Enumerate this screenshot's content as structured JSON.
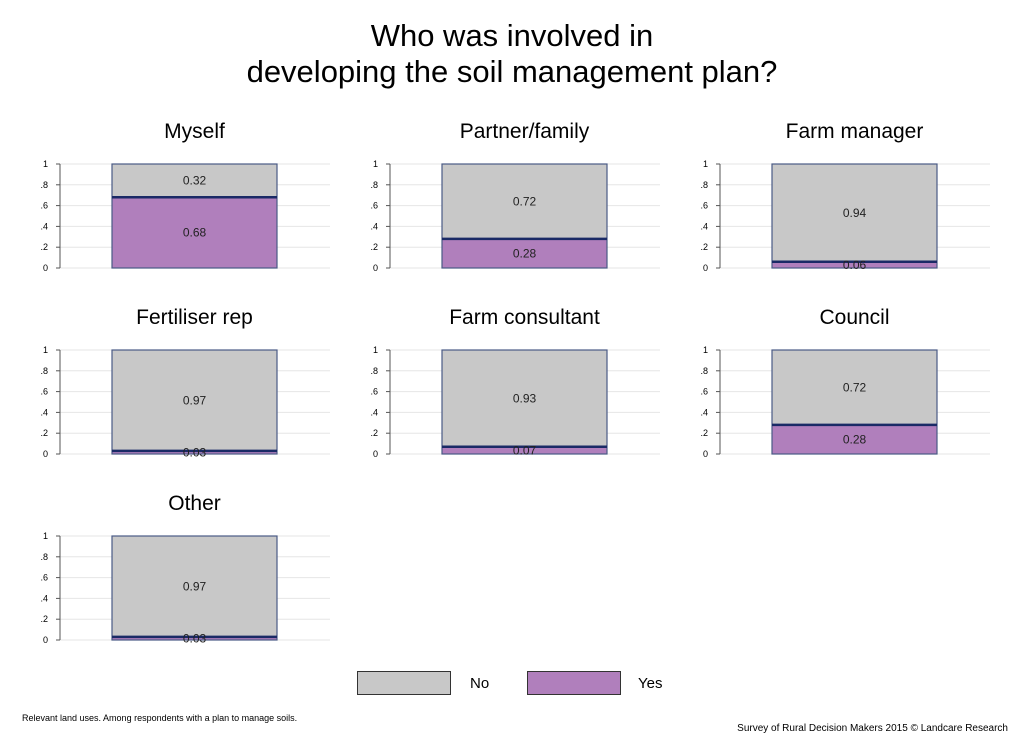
{
  "title_lines": [
    "Who was involved in",
    "developing the soil management plan?"
  ],
  "colors": {
    "no": "#c8c8c8",
    "yes": "#b07fbc",
    "outline": "#4a5a85",
    "divider": "#1a2a66"
  },
  "chart_data": {
    "type": "bar",
    "stacked": true,
    "y_ticks": [
      {
        "value": 0,
        "label": "0"
      },
      {
        "value": 0.2,
        "label": ".2"
      },
      {
        "value": 0.4,
        "label": ".4"
      },
      {
        "value": 0.6,
        "label": ".6"
      },
      {
        "value": 0.8,
        "label": ".8"
      },
      {
        "value": 1,
        "label": "1"
      }
    ],
    "ylim": [
      0,
      1
    ],
    "grid": true,
    "legend_position": "bottom",
    "series_names": [
      "No",
      "Yes"
    ],
    "panels": [
      {
        "title": "Myself",
        "no": 0.32,
        "yes": 0.68,
        "no_label": "0.32",
        "yes_label": "0.68"
      },
      {
        "title": "Partner/family",
        "no": 0.72,
        "yes": 0.28,
        "no_label": "0.72",
        "yes_label": "0.28"
      },
      {
        "title": "Farm manager",
        "no": 0.94,
        "yes": 0.06,
        "no_label": "0.94",
        "yes_label": "0.06"
      },
      {
        "title": "Fertiliser rep",
        "no": 0.97,
        "yes": 0.03,
        "no_label": "0.97",
        "yes_label": "0.03"
      },
      {
        "title": "Farm consultant",
        "no": 0.93,
        "yes": 0.07,
        "no_label": "0.93",
        "yes_label": "0.07"
      },
      {
        "title": "Council",
        "no": 0.72,
        "yes": 0.28,
        "no_label": "0.72",
        "yes_label": "0.28"
      },
      {
        "title": "Other",
        "no": 0.97,
        "yes": 0.03,
        "no_label": "0.97",
        "yes_label": "0.03"
      }
    ]
  },
  "legend": {
    "no_label": "No",
    "yes_label": "Yes"
  },
  "footnote": "Relevant land uses. Among respondents with a plan to manage soils.",
  "credit": "Survey of Rural Decision Makers 2015 © Landcare Research"
}
